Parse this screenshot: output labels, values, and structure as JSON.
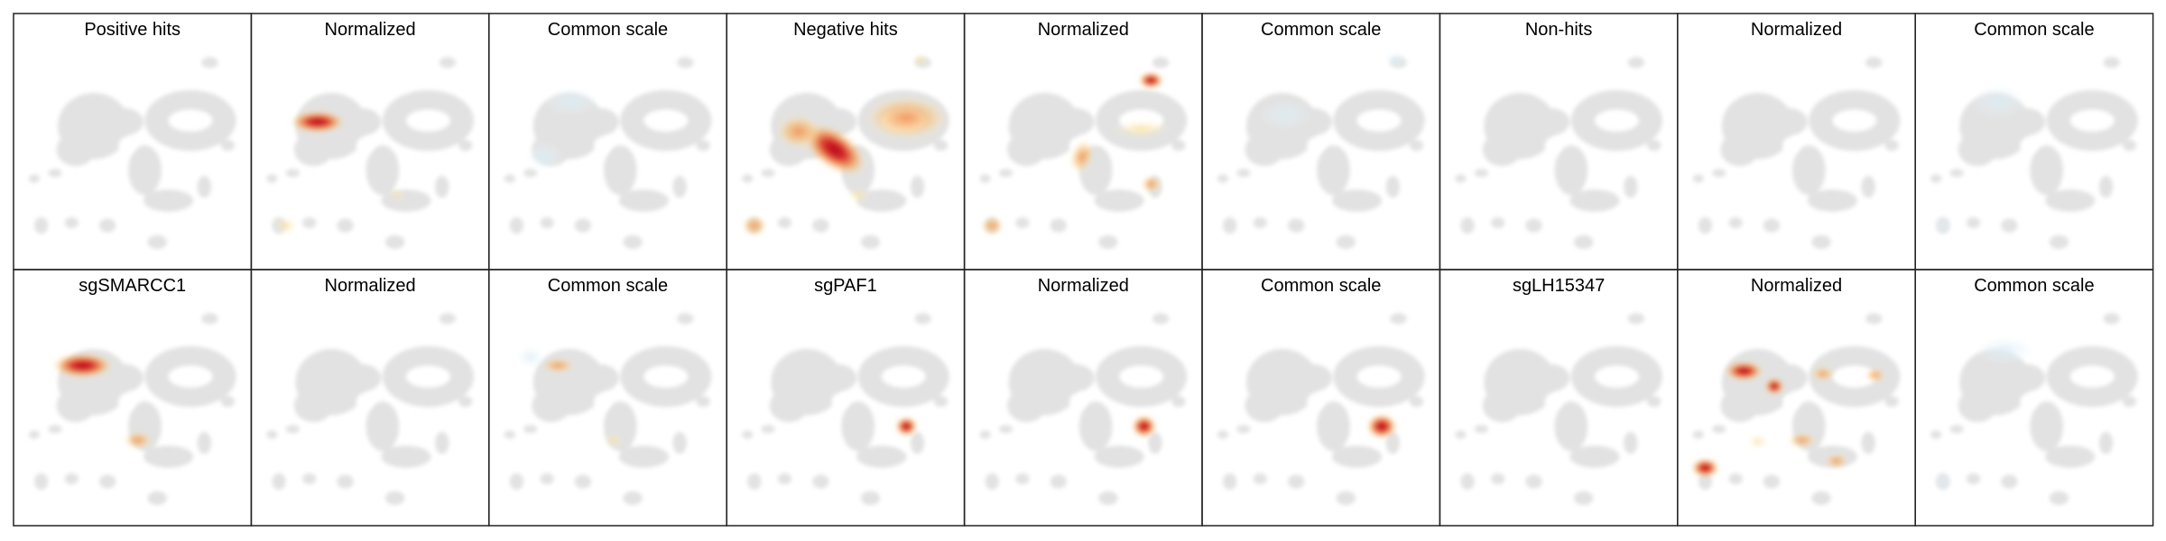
{
  "rows": [
    [
      "Positive hits",
      "Normalized",
      "Common scale",
      "Negative hits",
      "Normalized",
      "Common scale",
      "Non-hits",
      "Normalized",
      "Common scale"
    ],
    [
      "sgSMARCC1",
      "Normalized",
      "Common scale",
      "sgPAF1",
      "Normalized",
      "Common scale",
      "sgLH15347",
      "Normalized",
      "Common scale"
    ]
  ]
}
